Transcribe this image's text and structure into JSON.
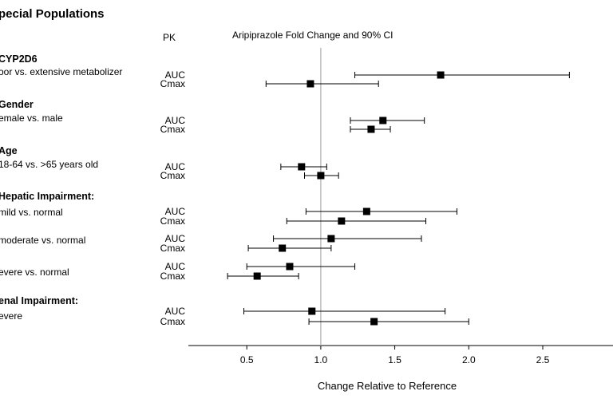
{
  "chart_data": {
    "type": "forest",
    "title": "pecial Populations",
    "pk_header": "PK",
    "plot_header": "Aripiprazole Fold Change and 90% CI",
    "xlabel": "Change Relative to Reference",
    "xlim": [
      0.1,
      3.0
    ],
    "xticks": [
      "0.5",
      "1.0",
      "1.5",
      "2.0",
      "2.5",
      "3"
    ],
    "reference_line": 1.0,
    "groups": [
      {
        "label": "CYP2D6",
        "subgroups": [
          {
            "label": "oor vs. extensive metabolizer",
            "rows": [
              {
                "pk": "AUC",
                "est": 1.81,
                "lo": 1.23,
                "hi": 2.68
              },
              {
                "pk": "Cmax",
                "est": 0.93,
                "lo": 0.63,
                "hi": 1.39
              }
            ]
          }
        ]
      },
      {
        "label": "Gender",
        "subgroups": [
          {
            "label": "emale vs. male",
            "rows": [
              {
                "pk": "AUC",
                "est": 1.42,
                "lo": 1.2,
                "hi": 1.7
              },
              {
                "pk": "Cmax",
                "est": 1.34,
                "lo": 1.2,
                "hi": 1.47
              }
            ]
          }
        ]
      },
      {
        "label": "Age",
        "subgroups": [
          {
            "label": "18-64 vs. >65 years old",
            "rows": [
              {
                "pk": "AUC",
                "est": 0.87,
                "lo": 0.73,
                "hi": 1.04
              },
              {
                "pk": "Cmax",
                "est": 1.0,
                "lo": 0.89,
                "hi": 1.12
              }
            ]
          }
        ]
      },
      {
        "label": "Hepatic Impairment:",
        "subgroups": [
          {
            "label": "mild vs. normal",
            "rows": [
              {
                "pk": "AUC",
                "est": 1.31,
                "lo": 0.9,
                "hi": 1.92
              },
              {
                "pk": "Cmax",
                "est": 1.14,
                "lo": 0.77,
                "hi": 1.71
              }
            ]
          },
          {
            "label": "moderate vs. normal",
            "rows": [
              {
                "pk": "AUC",
                "est": 1.07,
                "lo": 0.68,
                "hi": 1.68
              },
              {
                "pk": "Cmax",
                "est": 0.74,
                "lo": 0.51,
                "hi": 1.07
              }
            ]
          },
          {
            "label": "evere vs. normal",
            "rows": [
              {
                "pk": "AUC",
                "est": 0.79,
                "lo": 0.5,
                "hi": 1.23
              },
              {
                "pk": "Cmax",
                "est": 0.57,
                "lo": 0.37,
                "hi": 0.85
              }
            ]
          }
        ]
      },
      {
        "label": "enal Impairment:",
        "subgroups": [
          {
            "label": "evere",
            "rows": [
              {
                "pk": "AUC",
                "est": 0.94,
                "lo": 0.48,
                "hi": 1.84
              },
              {
                "pk": "Cmax",
                "est": 1.36,
                "lo": 0.92,
                "hi": 2.0
              }
            ]
          }
        ]
      }
    ]
  }
}
